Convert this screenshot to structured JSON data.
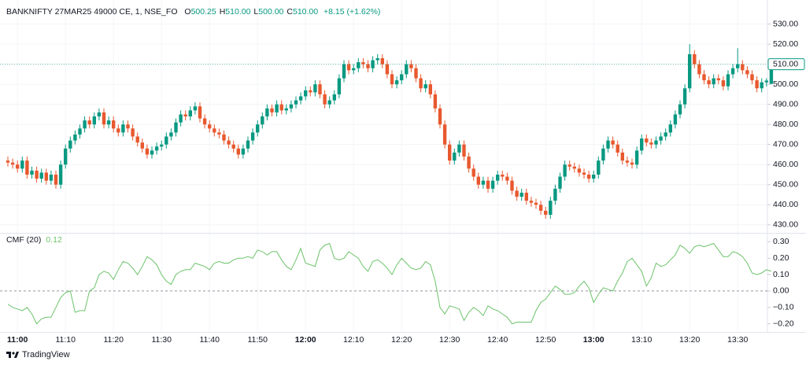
{
  "chart_data": [
    {
      "type": "candlestick",
      "title": "BANKNIFTY 27MAR25 49000 CE, 1, NSE_FO",
      "legend": [
        {
          "key": "O",
          "value": "500.25"
        },
        {
          "key": "H",
          "value": "510.00"
        },
        {
          "key": "L",
          "value": "500.00"
        },
        {
          "key": "C",
          "value": "510.00"
        }
      ],
      "change": "+8.15 (+1.62%)",
      "categories": [
        null,
        null,
        "11:00",
        null,
        null,
        null,
        null,
        null,
        null,
        null,
        null,
        null,
        "11:10",
        null,
        null,
        null,
        null,
        null,
        null,
        null,
        null,
        null,
        "11:20",
        null,
        null,
        null,
        null,
        null,
        null,
        null,
        null,
        null,
        "11:30",
        null,
        null,
        null,
        null,
        null,
        null,
        null,
        null,
        null,
        "11:40",
        null,
        null,
        null,
        null,
        null,
        null,
        null,
        null,
        null,
        "11:50",
        null,
        null,
        null,
        null,
        null,
        null,
        null,
        null,
        null,
        "12:00",
        null,
        null,
        null,
        null,
        null,
        null,
        null,
        null,
        null,
        "12:10",
        null,
        null,
        null,
        null,
        null,
        null,
        null,
        null,
        null,
        "12:20",
        null,
        null,
        null,
        null,
        null,
        null,
        null,
        null,
        null,
        "12:30",
        null,
        null,
        null,
        null,
        null,
        null,
        null,
        null,
        null,
        "12:40",
        null,
        null,
        null,
        null,
        null,
        null,
        null,
        null,
        null,
        "12:50",
        null,
        null,
        null,
        null,
        null,
        null,
        null,
        null,
        null,
        "13:00",
        null,
        null,
        null,
        null,
        null,
        null,
        null,
        null,
        null,
        "13:10",
        null,
        null,
        null,
        null,
        null,
        null,
        null,
        null,
        null,
        "13:20",
        null,
        null,
        null,
        null,
        null,
        null,
        null,
        null,
        null,
        "13:30",
        null,
        null,
        null,
        null,
        null,
        null,
        null
      ],
      "open": [
        462,
        461,
        460,
        458,
        462,
        455,
        457,
        453,
        456,
        452,
        455,
        450,
        460,
        468,
        472,
        475,
        478,
        482,
        480,
        484,
        486,
        480,
        482,
        478,
        476,
        480,
        478,
        474,
        471,
        468,
        465,
        467,
        469,
        470,
        474,
        476,
        481,
        485,
        484,
        487,
        489,
        483,
        480,
        478,
        476,
        475,
        472,
        470,
        468,
        465,
        468,
        472,
        476,
        480,
        484,
        488,
        486,
        490,
        487,
        488,
        490,
        492,
        494,
        497,
        496,
        500,
        495,
        490,
        492,
        495,
        503,
        510,
        507,
        508,
        511,
        510,
        508,
        512,
        513,
        510,
        505,
        500,
        502,
        505,
        510,
        508,
        503,
        498,
        500,
        495,
        488,
        480,
        470,
        462,
        466,
        470,
        464,
        458,
        454,
        450,
        452,
        448,
        452,
        455,
        454,
        452,
        447,
        444,
        446,
        442,
        441,
        440,
        437,
        435,
        442,
        448,
        454,
        460,
        459,
        458,
        456,
        455,
        453,
        455,
        462,
        468,
        472,
        470,
        466,
        462,
        461,
        460,
        467,
        473,
        471,
        470,
        472,
        474,
        476,
        480,
        485,
        490,
        498,
        515,
        510,
        505,
        502,
        500,
        503,
        502,
        499,
        505,
        508,
        510,
        507,
        505,
        502,
        498,
        501,
        500.25
      ],
      "high": [
        464,
        463,
        462,
        464,
        464,
        459,
        459,
        458,
        458,
        457,
        457,
        462,
        470,
        474,
        477,
        480,
        484,
        484,
        486,
        488,
        488,
        484,
        484,
        480,
        482,
        482,
        480,
        476,
        473,
        470,
        469,
        471,
        472,
        476,
        478,
        483,
        487,
        487,
        489,
        491,
        491,
        485,
        482,
        480,
        478,
        477,
        474,
        472,
        470,
        470,
        474,
        478,
        482,
        486,
        490,
        490,
        492,
        492,
        490,
        492,
        494,
        496,
        499,
        499,
        502,
        502,
        497,
        494,
        497,
        505,
        512,
        512,
        510,
        513,
        513,
        512,
        514,
        515,
        515,
        512,
        507,
        504,
        507,
        512,
        512,
        510,
        505,
        502,
        502,
        497,
        490,
        482,
        472,
        468,
        472,
        472,
        466,
        460,
        456,
        454,
        454,
        454,
        457,
        457,
        456,
        454,
        449,
        448,
        448,
        444,
        443,
        442,
        439,
        444,
        450,
        456,
        462,
        462,
        461,
        460,
        458,
        457,
        457,
        464,
        470,
        474,
        474,
        472,
        468,
        464,
        463,
        469,
        475,
        475,
        473,
        474,
        476,
        478,
        482,
        487,
        492,
        500,
        520,
        517,
        512,
        507,
        504,
        505,
        505,
        504,
        507,
        510,
        518,
        512,
        509,
        507,
        504,
        503,
        503,
        510
      ],
      "low": [
        459,
        458,
        456,
        456,
        453,
        453,
        451,
        451,
        450,
        450,
        448,
        448,
        458,
        466,
        470,
        473,
        476,
        478,
        478,
        482,
        478,
        478,
        476,
        474,
        474,
        476,
        472,
        469,
        466,
        463,
        463,
        465,
        467,
        468,
        472,
        474,
        479,
        482,
        482,
        485,
        481,
        478,
        476,
        474,
        473,
        470,
        468,
        466,
        463,
        463,
        466,
        470,
        474,
        478,
        482,
        484,
        484,
        485,
        485,
        486,
        488,
        490,
        492,
        494,
        494,
        493,
        488,
        488,
        490,
        493,
        501,
        505,
        505,
        506,
        508,
        506,
        506,
        510,
        508,
        503,
        498,
        498,
        500,
        503,
        506,
        501,
        496,
        496,
        493,
        486,
        478,
        468,
        460,
        460,
        464,
        462,
        456,
        452,
        448,
        448,
        446,
        446,
        450,
        452,
        450,
        445,
        442,
        442,
        440,
        439,
        438,
        435,
        433,
        433,
        440,
        446,
        452,
        457,
        456,
        454,
        453,
        451,
        451,
        453,
        460,
        466,
        468,
        464,
        460,
        459,
        458,
        458,
        465,
        469,
        468,
        468,
        470,
        472,
        474,
        478,
        483,
        488,
        496,
        508,
        503,
        500,
        498,
        498,
        500,
        497,
        497,
        503,
        506,
        505,
        503,
        500,
        496,
        496,
        499,
        500
      ],
      "close": [
        461,
        460,
        458,
        462,
        455,
        457,
        453,
        456,
        452,
        455,
        450,
        460,
        468,
        472,
        475,
        478,
        482,
        480,
        484,
        486,
        480,
        482,
        478,
        476,
        480,
        478,
        474,
        471,
        468,
        465,
        467,
        469,
        470,
        474,
        476,
        481,
        485,
        484,
        487,
        489,
        483,
        480,
        478,
        476,
        475,
        472,
        470,
        468,
        465,
        468,
        472,
        476,
        480,
        484,
        488,
        486,
        490,
        487,
        488,
        490,
        492,
        494,
        497,
        496,
        500,
        495,
        490,
        492,
        495,
        503,
        510,
        507,
        508,
        511,
        510,
        508,
        512,
        513,
        510,
        505,
        500,
        502,
        505,
        510,
        508,
        503,
        498,
        500,
        495,
        488,
        480,
        470,
        462,
        466,
        470,
        464,
        458,
        454,
        450,
        452,
        448,
        452,
        455,
        454,
        452,
        447,
        444,
        446,
        442,
        441,
        440,
        437,
        435,
        442,
        448,
        454,
        460,
        459,
        458,
        456,
        455,
        453,
        455,
        462,
        468,
        472,
        470,
        466,
        462,
        461,
        460,
        467,
        473,
        471,
        470,
        472,
        474,
        476,
        480,
        485,
        490,
        498,
        515,
        510,
        505,
        502,
        500,
        503,
        502,
        499,
        505,
        508,
        510,
        507,
        505,
        502,
        498,
        501,
        501.85,
        510
      ],
      "up_color": "#089981",
      "down_color": "#e8582e",
      "ylim": [
        426,
        542
      ],
      "yticks": [
        {
          "value": 430,
          "label": "430.00"
        },
        {
          "value": 440,
          "label": "440.00"
        },
        {
          "value": 450,
          "label": "450.00"
        },
        {
          "value": 460,
          "label": "460.00"
        },
        {
          "value": 470,
          "label": "470.00"
        },
        {
          "value": 480,
          "label": "480.00"
        },
        {
          "value": 490,
          "label": "490.00"
        },
        {
          "value": 500,
          "label": "500.00"
        },
        {
          "value": 510,
          "label": "510.00"
        },
        {
          "value": 520,
          "label": "520.00"
        },
        {
          "value": 530,
          "label": "530.00"
        }
      ],
      "grid": true,
      "last_label": "510.00"
    },
    {
      "type": "line",
      "title": "CMF (20)",
      "last_label": "0.12",
      "color": "#6cc36a",
      "values": [
        -0.08,
        -0.1,
        -0.11,
        -0.12,
        -0.1,
        -0.14,
        -0.2,
        -0.17,
        -0.16,
        -0.16,
        -0.1,
        -0.04,
        -0.01,
        0.0,
        -0.13,
        -0.12,
        -0.12,
        0.0,
        0.02,
        0.1,
        0.12,
        0.11,
        0.07,
        0.13,
        0.18,
        0.17,
        0.14,
        0.1,
        0.15,
        0.21,
        0.19,
        0.16,
        0.1,
        0.06,
        0.04,
        0.1,
        0.12,
        0.13,
        0.13,
        0.17,
        0.16,
        0.15,
        0.13,
        0.17,
        0.18,
        0.17,
        0.17,
        0.19,
        0.2,
        0.2,
        0.21,
        0.2,
        0.25,
        0.24,
        0.22,
        0.24,
        0.24,
        0.19,
        0.15,
        0.13,
        0.19,
        0.26,
        0.17,
        0.16,
        0.15,
        0.25,
        0.28,
        0.29,
        0.2,
        0.19,
        0.2,
        0.24,
        0.22,
        0.2,
        0.15,
        0.12,
        0.18,
        0.19,
        0.17,
        0.14,
        0.1,
        0.16,
        0.2,
        0.17,
        0.14,
        0.13,
        0.14,
        0.18,
        0.16,
        0.06,
        -0.1,
        -0.14,
        -0.09,
        -0.1,
        -0.11,
        -0.18,
        -0.13,
        -0.1,
        -0.12,
        -0.15,
        -0.09,
        -0.11,
        -0.12,
        -0.14,
        -0.16,
        -0.2,
        -0.19,
        -0.19,
        -0.19,
        -0.19,
        -0.12,
        -0.07,
        -0.05,
        -0.01,
        0.03,
        0.01,
        -0.02,
        -0.02,
        -0.01,
        0.03,
        0.06,
        0.02,
        -0.07,
        -0.02,
        0.02,
        0.01,
        0.0,
        0.06,
        0.11,
        0.18,
        0.2,
        0.16,
        0.12,
        0.03,
        0.08,
        0.17,
        0.15,
        0.16,
        0.19,
        0.22,
        0.28,
        0.26,
        0.23,
        0.27,
        0.28,
        0.27,
        0.28,
        0.29,
        0.25,
        0.21,
        0.21,
        0.24,
        0.23,
        0.21,
        0.17,
        0.11,
        0.1,
        0.11,
        0.13,
        0.12
      ],
      "ylim": [
        -0.25,
        0.35
      ],
      "yticks": [
        {
          "value": 0.3,
          "label": "0.30"
        },
        {
          "value": 0.2,
          "label": "0.20"
        },
        {
          "value": 0.1,
          "label": "0.10"
        },
        {
          "value": 0,
          "label": "0.00"
        },
        {
          "value": -0.1,
          "label": "−0.10"
        },
        {
          "value": -0.2,
          "label": "−0.20"
        }
      ],
      "hline": 0
    }
  ],
  "brand": "TradingView"
}
